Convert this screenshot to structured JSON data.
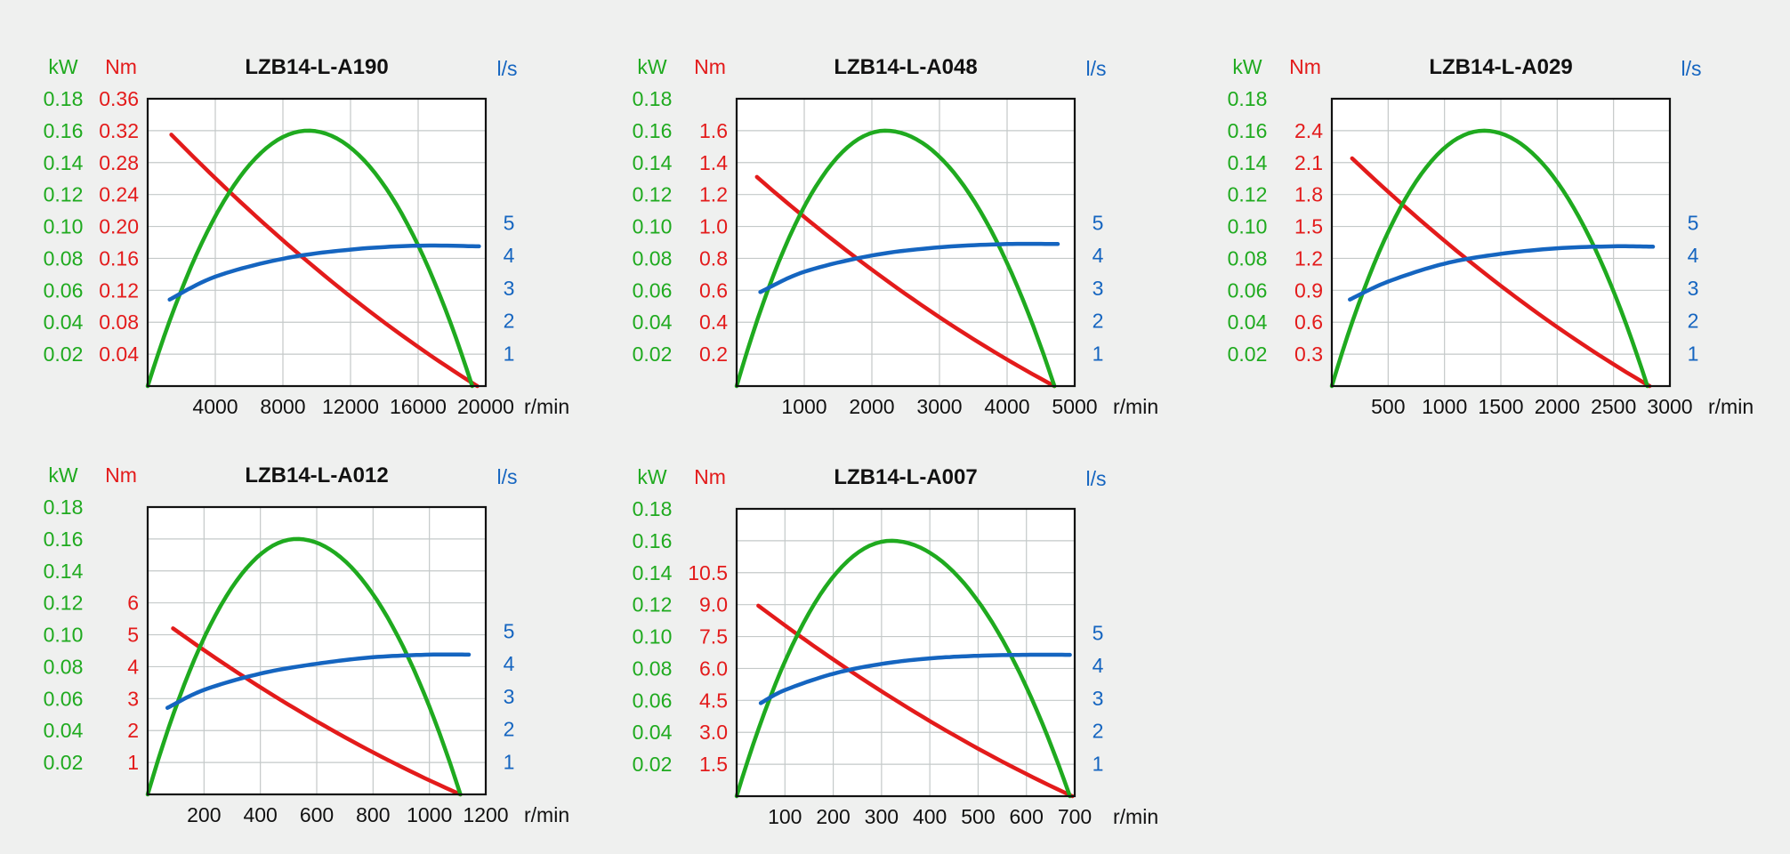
{
  "colors": {
    "background": "#eff0ef",
    "power": "#1faa1f",
    "torque": "#e31b1b",
    "flow": "#1565c0",
    "grid": "#c4c9c9",
    "frame": "#111111",
    "title": "#111111",
    "axis_text": "#111111"
  },
  "chart_data": [
    {
      "type": "line",
      "title": "LZB14-L-A190",
      "xlabel": "r/min",
      "x_ticks": [
        "4000",
        "8000",
        "12000",
        "16000",
        "20000"
      ],
      "xlim": [
        0,
        20000
      ],
      "grid": true,
      "power_axis": {
        "label": "kW",
        "ticks": [
          "0.02",
          "0.04",
          "0.06",
          "0.08",
          "0.10",
          "0.12",
          "0.14",
          "0.16",
          "0.18"
        ],
        "ylim": [
          0,
          0.18
        ]
      },
      "torque_axis": {
        "label": "Nm",
        "ticks": [
          "0.04",
          "0.08",
          "0.12",
          "0.16",
          "0.20",
          "0.24",
          "0.28",
          "0.32",
          "0.36"
        ],
        "ylim": [
          0,
          0.36
        ]
      },
      "flow_axis": {
        "label": "l/s",
        "ticks": [
          "1",
          "2",
          "3",
          "4",
          "5"
        ],
        "ylim": [
          0,
          8.8
        ]
      },
      "series": [
        {
          "axis": "torque",
          "x": [
            1400,
            19500
          ],
          "y": [
            0.315,
            0
          ]
        },
        {
          "axis": "power",
          "x": [
            0,
            9500,
            19200
          ],
          "y": [
            0,
            0.16,
            0
          ],
          "shape": "parabola"
        },
        {
          "axis": "flow",
          "x": [
            1300,
            4000,
            8000,
            12000,
            16000,
            19600
          ],
          "y": [
            2.65,
            3.35,
            3.9,
            4.18,
            4.3,
            4.28
          ]
        }
      ]
    },
    {
      "type": "line",
      "title": "LZB14-L-A048",
      "xlabel": "r/min",
      "x_ticks": [
        "1000",
        "2000",
        "3000",
        "4000",
        "5000"
      ],
      "xlim": [
        0,
        5000
      ],
      "grid": true,
      "power_axis": {
        "label": "kW",
        "ticks": [
          "0.02",
          "0.04",
          "0.06",
          "0.08",
          "0.10",
          "0.12",
          "0.14",
          "0.16",
          "0.18"
        ],
        "ylim": [
          0,
          0.18
        ]
      },
      "torque_axis": {
        "label": "Nm",
        "ticks": [
          "0.2",
          "0.4",
          "0.6",
          "0.8",
          "1.0",
          "1.2",
          "1.4",
          "1.6"
        ],
        "ylim": [
          0,
          1.8
        ]
      },
      "flow_axis": {
        "label": "l/s",
        "ticks": [
          "1",
          "2",
          "3",
          "4",
          "5"
        ],
        "ylim": [
          0,
          8.8
        ]
      },
      "series": [
        {
          "axis": "torque",
          "x": [
            300,
            4700
          ],
          "y": [
            1.31,
            0
          ]
        },
        {
          "axis": "power",
          "x": [
            0,
            2200,
            4700
          ],
          "y": [
            0,
            0.16,
            0
          ],
          "shape": "parabola"
        },
        {
          "axis": "flow",
          "x": [
            350,
            1000,
            2000,
            3000,
            4000,
            4750
          ],
          "y": [
            2.88,
            3.5,
            4.0,
            4.25,
            4.35,
            4.35
          ]
        }
      ]
    },
    {
      "type": "line",
      "title": "LZB14-L-A029",
      "xlabel": "r/min",
      "x_ticks": [
        "500",
        "1000",
        "1500",
        "2000",
        "2500",
        "3000"
      ],
      "xlim": [
        0,
        3000
      ],
      "grid": true,
      "power_axis": {
        "label": "kW",
        "ticks": [
          "0.02",
          "0.04",
          "0.06",
          "0.08",
          "0.10",
          "0.12",
          "0.14",
          "0.16",
          "0.18"
        ],
        "ylim": [
          0,
          0.18
        ]
      },
      "torque_axis": {
        "label": "Nm",
        "ticks": [
          "0.3",
          "0.6",
          "0.9",
          "1.2",
          "1.5",
          "1.8",
          "2.1",
          "2.4"
        ],
        "ylim": [
          0,
          2.7
        ]
      },
      "flow_axis": {
        "label": "l/s",
        "ticks": [
          "1",
          "2",
          "3",
          "4",
          "5"
        ],
        "ylim": [
          0,
          8.8
        ]
      },
      "series": [
        {
          "axis": "torque",
          "x": [
            180,
            2820
          ],
          "y": [
            2.14,
            0
          ]
        },
        {
          "axis": "power",
          "x": [
            0,
            1350,
            2800
          ],
          "y": [
            0,
            0.16,
            0
          ],
          "shape": "parabola"
        },
        {
          "axis": "flow",
          "x": [
            160,
            500,
            1000,
            1500,
            2000,
            2500,
            2850
          ],
          "y": [
            2.65,
            3.2,
            3.75,
            4.05,
            4.22,
            4.28,
            4.27
          ]
        }
      ]
    },
    {
      "type": "line",
      "title": "LZB14-L-A012",
      "xlabel": "r/min",
      "x_ticks": [
        "200",
        "400",
        "600",
        "800",
        "1000",
        "1200"
      ],
      "xlim": [
        0,
        1200
      ],
      "grid": true,
      "power_axis": {
        "label": "kW",
        "ticks": [
          "0.02",
          "0.04",
          "0.06",
          "0.08",
          "0.10",
          "0.12",
          "0.14",
          "0.16",
          "0.18"
        ],
        "ylim": [
          0,
          0.18
        ]
      },
      "torque_axis": {
        "label": "Nm",
        "ticks": [
          "1",
          "2",
          "3",
          "4",
          "5",
          "6"
        ],
        "ylim": [
          0,
          9
        ]
      },
      "flow_axis": {
        "label": "l/s",
        "ticks": [
          "1",
          "2",
          "3",
          "4",
          "5"
        ],
        "ylim": [
          0,
          8.8
        ]
      },
      "series": [
        {
          "axis": "torque",
          "x": [
            90,
            1110
          ],
          "y": [
            5.2,
            0
          ]
        },
        {
          "axis": "power",
          "x": [
            0,
            530,
            1110
          ],
          "y": [
            0,
            0.16,
            0
          ],
          "shape": "parabola"
        },
        {
          "axis": "flow",
          "x": [
            70,
            200,
            400,
            600,
            800,
            1000,
            1140
          ],
          "y": [
            2.65,
            3.2,
            3.7,
            4.0,
            4.2,
            4.28,
            4.28
          ]
        }
      ]
    },
    {
      "type": "line",
      "title": "LZB14-L-A007",
      "xlabel": "r/min",
      "x_ticks": [
        "100",
        "200",
        "300",
        "400",
        "500",
        "600",
        "700"
      ],
      "xlim": [
        0,
        700
      ],
      "grid": true,
      "power_axis": {
        "label": "kW",
        "ticks": [
          "0.02",
          "0.04",
          "0.06",
          "0.08",
          "0.10",
          "0.12",
          "0.14",
          "0.16",
          "0.18"
        ],
        "ylim": [
          0,
          0.18
        ]
      },
      "torque_axis": {
        "label": "Nm",
        "ticks": [
          "1.5",
          "3.0",
          "4.5",
          "6.0",
          "7.5",
          "9.0",
          "10.5"
        ],
        "ylim": [
          0,
          13.5
        ]
      },
      "flow_axis": {
        "label": "l/s",
        "ticks": [
          "1",
          "2",
          "3",
          "4",
          "5"
        ],
        "ylim": [
          0,
          8.8
        ]
      },
      "series": [
        {
          "axis": "torque",
          "x": [
            45,
            695
          ],
          "y": [
            8.95,
            0
          ]
        },
        {
          "axis": "power",
          "x": [
            0,
            320,
            690
          ],
          "y": [
            0,
            0.16,
            0
          ],
          "shape": "parabola"
        },
        {
          "axis": "flow",
          "x": [
            50,
            100,
            200,
            300,
            400,
            500,
            600,
            690
          ],
          "y": [
            2.85,
            3.25,
            3.75,
            4.05,
            4.22,
            4.3,
            4.33,
            4.33
          ]
        }
      ]
    }
  ]
}
